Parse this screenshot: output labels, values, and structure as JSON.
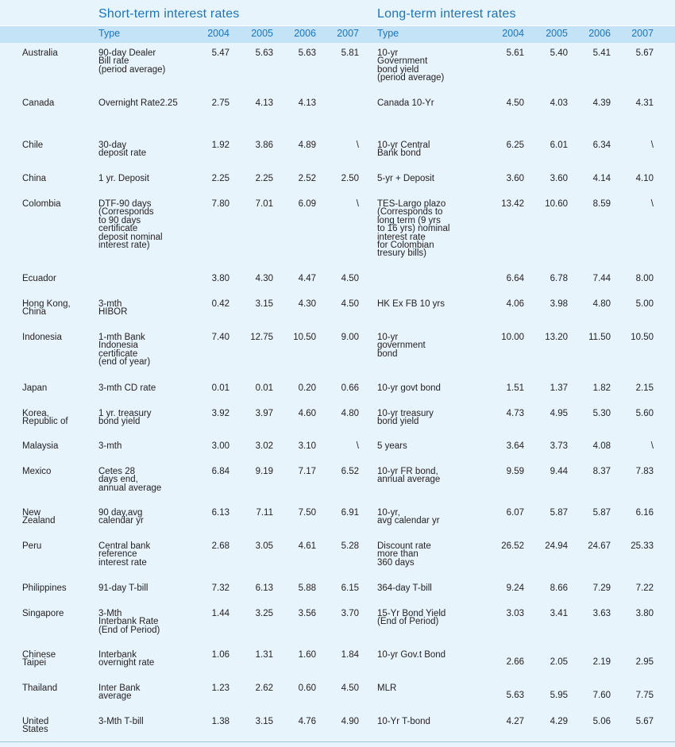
{
  "header": {
    "short_title": "Short-term interest rates",
    "long_title": "Long-term interest rates",
    "type_label": "Type",
    "years": [
      "2004",
      "2005",
      "2006",
      "2007"
    ]
  },
  "rows": [
    {
      "country": "Australia",
      "s_type": "90-day Dealer\nBill rate\n(period average)",
      "s": [
        "5.47",
        "5.63",
        "5.63",
        "5.81"
      ],
      "l_type": "10-yr\nGovernment\nbond yield\n(period average)",
      "l": [
        "5.61",
        "5.40",
        "5.41",
        "5.67"
      ]
    },
    {
      "country": "Canada",
      "s_type": "Overnight Rate2.25",
      "s": [
        "2.75",
        "4.13",
        "4.13",
        ""
      ],
      "l_type": "Canada 10-Yr",
      "l": [
        "4.50",
        "4.03",
        "4.39",
        "4.31"
      ]
    },
    {
      "country": "Chile",
      "s_type": "30-day\ndeposit rate",
      "s": [
        "1.92",
        "3.86",
        "4.89",
        "\\"
      ],
      "l_type": "10-yr Central\nBank bond",
      "l": [
        "6.25",
        "6.01",
        "6.34",
        "\\"
      ]
    },
    {
      "country": "China",
      "s_type": "1 yr. Deposit",
      "s": [
        "2.25",
        "2.25",
        "2.52",
        "2.50"
      ],
      "l_type": "5-yr + Deposit",
      "l": [
        "3.60",
        "3.60",
        "4.14",
        "4.10"
      ]
    },
    {
      "country": "Colombia",
      "s_type": "DTF-90 days\n(Corresponds\n to 90 days\ncertificate\ndeposit nominal\ninterest rate)",
      "s": [
        "7.80",
        "7.01",
        "6.09",
        "\\"
      ],
      "l_type": "TES-Largo plazo\n(Corresponds to\nlong term (9 yrs\nto 16 yrs) nominal\ninterest rate\nfor Colombian\ntresury bills)",
      "l": [
        "13.42",
        "10.60",
        "8.59",
        "\\"
      ]
    },
    {
      "country": "Ecuador",
      "s_type": "",
      "s": [
        "3.80",
        "4.30",
        "4.47",
        "4.50"
      ],
      "l_type": "",
      "l": [
        "6.64",
        "6.78",
        "7.44",
        "8.00"
      ]
    },
    {
      "country": "Hong Kong,\nChina",
      "s_type": "3-mth\nHIBOR",
      "s": [
        "0.42",
        "3.15",
        "4.30",
        "4.50"
      ],
      "l_type": "HK Ex FB 10 yrs",
      "l": [
        "4.06",
        "3.98",
        "4.80",
        "5.00"
      ]
    },
    {
      "country": "Indonesia",
      "s_type": "1-mth Bank\nIndonesia\ncertificate\n(end of year)",
      "s": [
        "7.40",
        "12.75",
        "10.50",
        "9.00"
      ],
      "l_type": "10-yr\ngovernment\nbond",
      "l": [
        "10.00",
        "13.20",
        "11.50",
        "10.50"
      ]
    },
    {
      "country": "Japan",
      "s_type": "3-mth CD rate",
      "s": [
        "0.01",
        "0.01",
        "0.20",
        "0.66"
      ],
      "l_type": "10-yr govt bond",
      "l": [
        "1.51",
        "1.37",
        "1.82",
        "2.15"
      ]
    },
    {
      "country": "Korea,\nRepublic of",
      "s_type": "1 yr. treasury\nbond yield",
      "s": [
        "3.92",
        "3.97",
        "4.60",
        "4.80"
      ],
      "l_type": "10-yr treasury\nbond yield",
      "l": [
        "4.73",
        "4.95",
        "5.30",
        "5.60"
      ]
    },
    {
      "country": "Malaysia",
      "s_type": "3-mth",
      "s": [
        "3.00",
        "3.02",
        "3.10",
        "\\"
      ],
      "l_type": "5 years",
      "l": [
        "3.64",
        "3.73",
        "4.08",
        "\\"
      ]
    },
    {
      "country": "Mexico",
      "s_type": "Cetes 28\ndays end,\nannual       average",
      "s": [
        "6.84",
        "9.19",
        "7.17",
        "6.52"
      ],
      "l_type": "10-yr FR bond,\nannual average",
      "l": [
        "9.59",
        "9.44",
        "8.37",
        "7.83"
      ]
    },
    {
      "country": "New\nZealand",
      "s_type": "90 day,avg\ncalendar yr",
      "s": [
        "6.13",
        "7.11",
        "7.50",
        "6.91"
      ],
      "l_type": "10-yr,\navg calendar yr",
      "l": [
        "6.07",
        "5.87",
        "5.87",
        "6.16"
      ]
    },
    {
      "country": "Peru",
      "s_type": "Central bank\nreference\ninterest rate",
      "s": [
        "2.68",
        "3.05",
        "4.61",
        "5.28"
      ],
      "l_type": "Discount rate\nmore than\n360 days",
      "l": [
        "26.52",
        "24.94",
        "24.67",
        "25.33"
      ]
    },
    {
      "country": "Philippines",
      "s_type": "91-day T-bill",
      "s": [
        "7.32",
        "6.13",
        "5.88",
        "6.15"
      ],
      "l_type": "364-day T-bill",
      "l": [
        "9.24",
        "8.66",
        "7.29",
        "7.22"
      ]
    },
    {
      "country": "Singapore",
      "s_type": "3-Mth\nInterbank Rate\n(End of Period)",
      "s": [
        "1.44",
        "3.25",
        "3.56",
        "3.70"
      ],
      "l_type": "15-Yr Bond Yield\n(End of Period)",
      "l": [
        "3.03",
        "3.41",
        "3.63",
        "3.80"
      ]
    },
    {
      "country": "Chinese\nTaipei",
      "s_type": "Interbank\novernight rate",
      "s": [
        "1.06",
        "1.31",
        "1.60",
        "1.84"
      ],
      "l_type": "10-yr Gov.t Bond",
      "l": [
        "2.66",
        "2.05",
        "2.19",
        "2.95"
      ]
    },
    {
      "country": "Thailand",
      "s_type": "Inter Bank\naverage",
      "s": [
        "1.23",
        "2.62",
        "0.60",
        "4.50"
      ],
      "l_type": "MLR",
      "l": [
        "5.63",
        "5.95",
        "7.60",
        "7.75"
      ]
    },
    {
      "country": "United\nStates",
      "s_type": "3-Mth T-bill",
      "s": [
        "1.38",
        "3.15",
        "4.76",
        "4.90"
      ],
      "l_type": "10-Yr T-bond",
      "l": [
        "4.27",
        "4.29",
        "5.06",
        "5.67"
      ]
    }
  ]
}
